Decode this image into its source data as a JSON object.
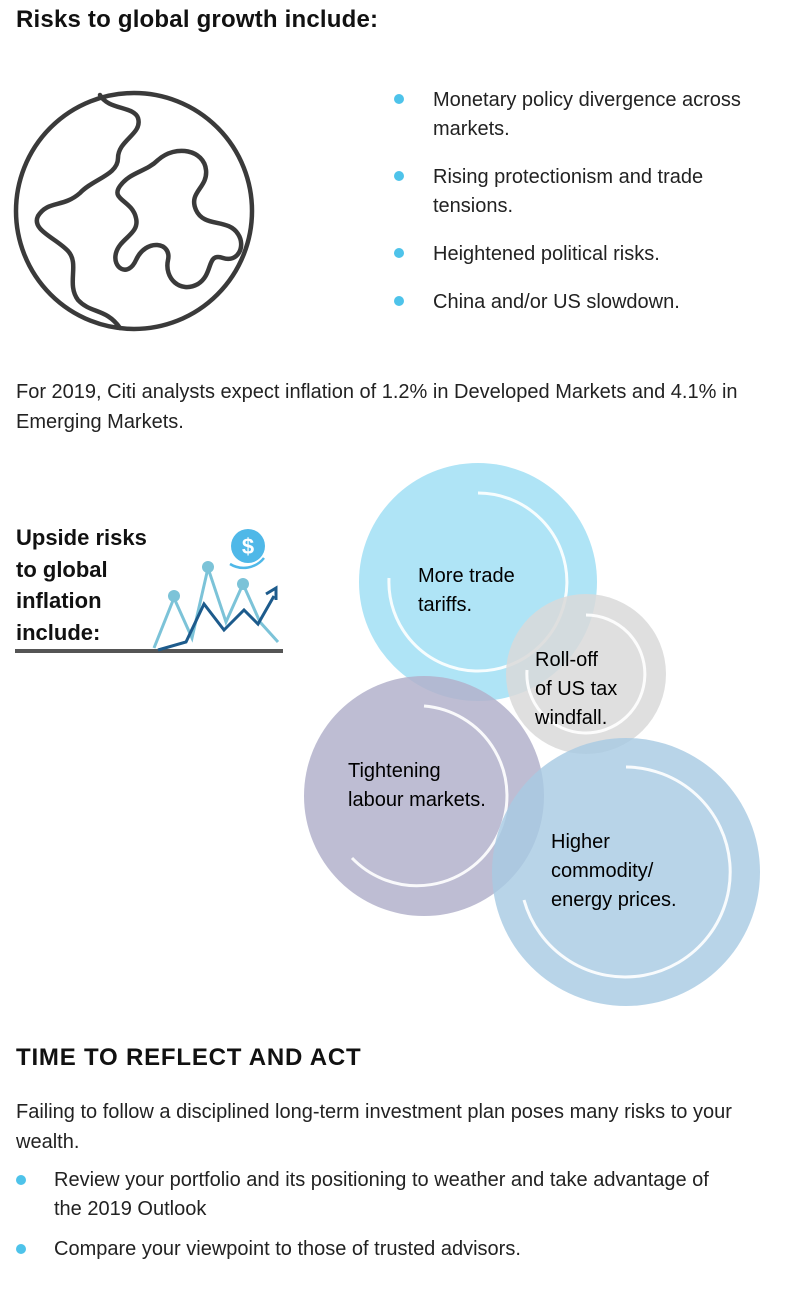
{
  "section1": {
    "title": "Risks to global growth include:",
    "bullets": [
      "Monetary policy divergence across markets.",
      "Rising protectionism and trade tensions.",
      "Heightened political risks.",
      "China and/or US slowdown."
    ]
  },
  "inflation_note": "For 2019, Citi analysts expect inflation of 1.2% in Developed Markets and 4.1% in Emerging Markets.",
  "upside": {
    "title_lines": [
      "Upside risks",
      "to global",
      "inflation",
      "include:"
    ],
    "currency_symbol": "$"
  },
  "circles": [
    {
      "lines": [
        "More trade",
        "tariffs."
      ],
      "color": "#a6e1f5"
    },
    {
      "lines": [
        "Roll-off",
        "of US tax",
        "windfall."
      ],
      "color": "#d9d9d9"
    },
    {
      "lines": [
        "Tightening",
        "labour markets."
      ],
      "color": "#b3b1cb"
    },
    {
      "lines": [
        "Higher",
        "commodity/",
        "energy prices."
      ],
      "color": "#a8cbe3"
    }
  ],
  "section2": {
    "title": "TIME TO REFLECT AND ACT",
    "paragraph": "Failing to follow a disciplined long-term investment plan poses many risks to your wealth.",
    "bullets": [
      "Review your portfolio and its positioning to weather and take advantage of the 2019 Outlook",
      "Compare your viewpoint to those of trusted advisors."
    ]
  },
  "colors": {
    "bullet": "#4ec3ea",
    "icon_light": "#7cc3d8",
    "icon_dark": "#1d5b8c",
    "dollar": "#4fb8e8"
  }
}
